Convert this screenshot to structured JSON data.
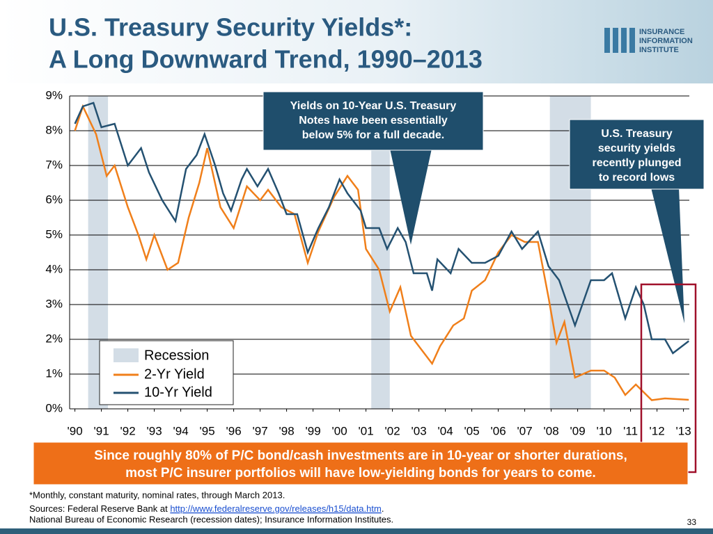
{
  "header": {
    "title_lines": [
      "U.S. Treasury Security Yields*:",
      "A Long Downward Trend, 1990–2013"
    ],
    "logo_lines": [
      "INSURANCE",
      "INFORMATION",
      "INSTITUTE"
    ]
  },
  "chart_data": {
    "type": "line",
    "xlim": [
      1989.8,
      2013.3
    ],
    "ylim": [
      0,
      9
    ],
    "yticks": [
      {
        "value": 0,
        "label": "0%"
      },
      {
        "value": 1,
        "label": "1%"
      },
      {
        "value": 2,
        "label": "2%"
      },
      {
        "value": 3,
        "label": "3%"
      },
      {
        "value": 4,
        "label": "4%"
      },
      {
        "value": 5,
        "label": "5%"
      },
      {
        "value": 6,
        "label": "6%"
      },
      {
        "value": 7,
        "label": "7%"
      },
      {
        "value": 8,
        "label": "8%"
      },
      {
        "value": 9,
        "label": "9%"
      }
    ],
    "xticks": [
      {
        "value": 1990,
        "label": "'90"
      },
      {
        "value": 1991,
        "label": "'91"
      },
      {
        "value": 1992,
        "label": "'92"
      },
      {
        "value": 1993,
        "label": "'93"
      },
      {
        "value": 1994,
        "label": "'94"
      },
      {
        "value": 1995,
        "label": "'95"
      },
      {
        "value": 1996,
        "label": "'96"
      },
      {
        "value": 1997,
        "label": "'97"
      },
      {
        "value": 1998,
        "label": "'98"
      },
      {
        "value": 1999,
        "label": "'99"
      },
      {
        "value": 2000,
        "label": "'00"
      },
      {
        "value": 2001,
        "label": "'01"
      },
      {
        "value": 2002,
        "label": "'02"
      },
      {
        "value": 2003,
        "label": "'03"
      },
      {
        "value": 2004,
        "label": "'04"
      },
      {
        "value": 2005,
        "label": "'05"
      },
      {
        "value": 2006,
        "label": "'06"
      },
      {
        "value": 2007,
        "label": "'07"
      },
      {
        "value": 2008,
        "label": "'08"
      },
      {
        "value": 2009,
        "label": "'09"
      },
      {
        "value": 2010,
        "label": "'10"
      },
      {
        "value": 2011,
        "label": "'11"
      },
      {
        "value": 2012,
        "label": "'12"
      },
      {
        "value": 2013,
        "label": "'13"
      }
    ],
    "grid": true,
    "recession_name": "Recession",
    "recession_color": "#d3dde6",
    "recessions": [
      [
        1990.5,
        1991.25
      ],
      [
        2001.2,
        2001.9
      ],
      [
        2007.95,
        2009.5
      ]
    ],
    "series": [
      {
        "name": "2-Yr Yield",
        "color": "#f07f1a",
        "x": [
          1990.0,
          1990.3,
          1990.8,
          1991.2,
          1991.5,
          1992.0,
          1992.4,
          1992.7,
          1993.0,
          1993.5,
          1993.9,
          1994.3,
          1994.7,
          1995.0,
          1995.5,
          1996.0,
          1996.5,
          1997.0,
          1997.3,
          1997.8,
          1998.3,
          1998.8,
          1999.2,
          1999.8,
          2000.3,
          2000.7,
          2001.0,
          2001.5,
          2001.9,
          2002.3,
          2002.7,
          2003.2,
          2003.5,
          2003.8,
          2004.3,
          2004.7,
          2005.0,
          2005.5,
          2006.0,
          2006.5,
          2007.0,
          2007.5,
          2007.9,
          2008.2,
          2008.5,
          2008.9,
          2009.5,
          2010.0,
          2010.4,
          2010.8,
          2011.2,
          2011.6,
          2011.8,
          2012.3,
          2013.2
        ],
        "values": [
          8.0,
          8.7,
          7.9,
          6.7,
          7.0,
          5.8,
          5.0,
          4.3,
          5.0,
          4.0,
          4.2,
          5.5,
          6.5,
          7.5,
          5.8,
          5.2,
          6.4,
          6.0,
          6.3,
          5.8,
          5.6,
          4.2,
          5.1,
          6.1,
          6.7,
          6.3,
          4.6,
          4.0,
          2.8,
          3.5,
          2.1,
          1.6,
          1.3,
          1.8,
          2.4,
          2.6,
          3.4,
          3.7,
          4.5,
          5.0,
          4.8,
          4.8,
          3.2,
          1.9,
          2.5,
          0.9,
          1.1,
          1.1,
          0.9,
          0.4,
          0.7,
          0.4,
          0.25,
          0.3,
          0.26
        ]
      },
      {
        "name": "10-Yr Yield",
        "color": "#245171",
        "x": [
          1990.0,
          1990.3,
          1990.7,
          1991.0,
          1991.5,
          1992.0,
          1992.5,
          1992.8,
          1993.3,
          1993.8,
          1994.2,
          1994.6,
          1994.9,
          1995.3,
          1995.6,
          1995.9,
          1996.3,
          1996.5,
          1996.9,
          1997.3,
          1997.7,
          1998.0,
          1998.4,
          1998.8,
          1999.2,
          1999.6,
          2000.0,
          2000.3,
          2000.8,
          2001.0,
          2001.5,
          2001.8,
          2002.2,
          2002.5,
          2002.8,
          2003.3,
          2003.5,
          2003.7,
          2004.2,
          2004.5,
          2005.0,
          2005.5,
          2006.0,
          2006.5,
          2006.9,
          2007.5,
          2007.9,
          2008.3,
          2008.9,
          2009.5,
          2010.0,
          2010.3,
          2010.8,
          2011.2,
          2011.5,
          2011.8,
          2012.3,
          2012.6,
          2013.2
        ],
        "values": [
          8.2,
          8.7,
          8.8,
          8.1,
          8.2,
          7.0,
          7.5,
          6.8,
          6.0,
          5.4,
          6.9,
          7.3,
          7.9,
          7.0,
          6.2,
          5.7,
          6.6,
          6.9,
          6.4,
          6.9,
          6.2,
          5.6,
          5.6,
          4.5,
          5.2,
          5.8,
          6.6,
          6.2,
          5.7,
          5.2,
          5.2,
          4.6,
          5.2,
          4.8,
          3.9,
          3.9,
          3.4,
          4.3,
          3.9,
          4.6,
          4.2,
          4.2,
          4.4,
          5.1,
          4.6,
          5.1,
          4.1,
          3.7,
          2.4,
          3.7,
          3.7,
          3.9,
          2.6,
          3.5,
          3.0,
          2.0,
          2.0,
          1.6,
          1.95
        ]
      }
    ]
  },
  "callouts": [
    {
      "lines": [
        "Yields on 10-Year U.S. Treasury",
        "Notes have been essentially",
        "below 5% for a full decade."
      ]
    },
    {
      "lines": [
        "U.S. Treasury",
        "security yields",
        "recently plunged",
        "to record lows"
      ]
    }
  ],
  "banner": {
    "lines": [
      "Since roughly 80% of P/C bond/cash investments are in 10-year or shorter durations,",
      "most P/C insurer portfolios will have low-yielding bonds for years to come."
    ]
  },
  "footer": {
    "note": "*Monthly, constant maturity, nominal rates, through March 2013.",
    "source_prefix": "Sources: Federal Reserve Bank at ",
    "source_link": "http://www.federalreserve.gov/releases/h15/data.htm",
    "source_suffix": ".",
    "source_line2": "National Bureau of Economic Research (recession dates); Insurance Information Institutes.",
    "page_number": "33"
  }
}
